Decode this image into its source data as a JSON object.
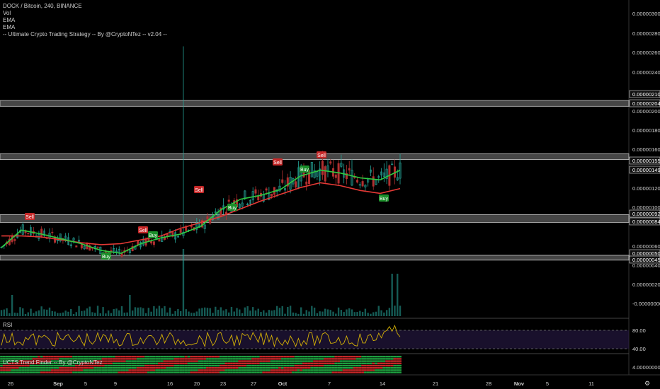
{
  "legend": {
    "title": "DOCK / Bitcoin, 240, BINANCE",
    "line2": "Vol",
    "line3": "EMA",
    "line4": "EMA",
    "line5": "-- Ultimate Crypto Trading Strategy -- By @CryptoNTez -- v2.04 --"
  },
  "panes": {
    "rsi_label": "RSI",
    "trend_label": "UCTS Trend Finder -- By @CryptoNTez"
  },
  "colors": {
    "background": "#000000",
    "candle": "#26a69a",
    "ema_fast": "#2ecc40",
    "ema_slow": "#e53935",
    "zone": "#c8c8c8",
    "rsi_line": "#d4b106",
    "rsi_band": "#2a1a4a",
    "buy": "#1b8f2a",
    "sell": "#c62828",
    "volume": "#26a69a"
  },
  "chart_data": {
    "type": "line",
    "price_axis_ticks": [
      "0.00000300",
      "0.00000280",
      "0.00000260",
      "0.00000240",
      "0.00000200",
      "0.00000180",
      "0.00000160",
      "0.00000120",
      "0.00000100",
      "0.00000060",
      "0.00000040",
      "0.00000020",
      "-0.00000000"
    ],
    "price_axis_labels_boxed": [
      "0.00000210",
      "0.00000204",
      "0.00000155",
      "0.00000149",
      "0.00000092",
      "0.00000084",
      "0.00000050",
      "0.00000045"
    ],
    "ylim": [
      0.0,
      3.1e-06
    ],
    "x_ticks": [
      "26",
      "Sep",
      "5",
      "9",
      "16",
      "20",
      "23",
      "27",
      "Oct",
      "7",
      "14",
      "21",
      "28",
      "Nov",
      "5",
      "11"
    ],
    "zones": [
      [
        2.04e-06,
        2.1e-06
      ],
      [
        1.49e-06,
        1.55e-06
      ],
      [
        8.4e-07,
        9.2e-07
      ],
      [
        4.5e-07,
        5e-07
      ]
    ],
    "series": [
      {
        "name": "EMA",
        "values": [
          5.8e-07,
          7.6e-07,
          7.2e-07,
          6.7e-07,
          6.2e-07,
          5.5e-07,
          5.2e-07,
          6.2e-07,
          6.8e-07,
          7.2e-07,
          8e-07,
          9.7e-07,
          1.08e-06,
          1.12e-06,
          1.18e-06,
          1.32e-06,
          1.38e-06,
          1.35e-06,
          1.3e-06,
          1.28e-06,
          1.38e-06
        ]
      },
      {
        "name": "EMA",
        "values": [
          7e-07,
          7e-07,
          6.9e-07,
          6.6e-07,
          6.3e-07,
          6.1e-07,
          6.2e-07,
          6.6e-07,
          7e-07,
          7.8e-07,
          8.4e-07,
          9e-07,
          9.8e-07,
          1.06e-06,
          1.13e-06,
          1.2e-06,
          1.25e-06,
          1.22e-06,
          1.17e-06,
          1.14e-06,
          1.19e-06
        ]
      }
    ],
    "signals": [
      {
        "label": "Sell",
        "type": "sell"
      },
      {
        "label": "Sell",
        "type": "sell"
      },
      {
        "label": "Sell",
        "type": "sell"
      },
      {
        "label": "Sell",
        "type": "sell"
      },
      {
        "label": "Sell",
        "type": "sell"
      },
      {
        "label": "Buy",
        "type": "buy"
      },
      {
        "label": "Buy",
        "type": "buy"
      },
      {
        "label": "Buy",
        "type": "buy"
      },
      {
        "label": "Buy",
        "type": "buy"
      },
      {
        "label": "Buy",
        "type": "buy"
      }
    ],
    "rsi_ticks": [
      "80.00",
      "40.00"
    ],
    "trend_ticks": [
      "4.00000000"
    ]
  }
}
